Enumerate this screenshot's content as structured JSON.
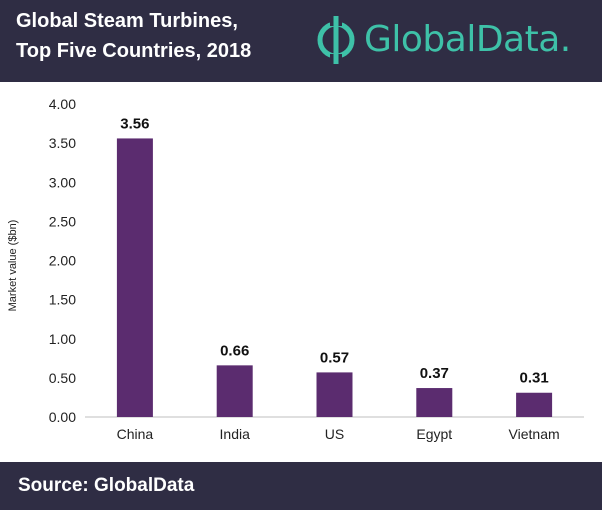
{
  "header": {
    "title_line1": "Global Steam Turbines,",
    "title_line2": "Top Five Countries, 2018",
    "logo_text": "GlobalData."
  },
  "footer": {
    "source": "Source: GlobalData"
  },
  "colors": {
    "bar": "#5b2c6f",
    "header_bg": "#2f2d44",
    "brand": "#3ec1a8"
  },
  "chart_data": {
    "type": "bar",
    "title": "Global Steam Turbines, Top Five Countries, 2018",
    "categories": [
      "China",
      "India",
      "US",
      "Egypt",
      "Vietnam"
    ],
    "values": [
      3.56,
      0.66,
      0.57,
      0.37,
      0.31
    ],
    "data_labels": [
      "3.56",
      "0.66",
      "0.57",
      "0.37",
      "0.31"
    ],
    "ylabel": "Market value ($bn)",
    "xlabel": "",
    "ylim": [
      0,
      4
    ],
    "yticks": [
      "0.00",
      "0.50",
      "1.00",
      "1.50",
      "2.00",
      "2.50",
      "3.00",
      "3.50",
      "4.00"
    ],
    "grid": false
  }
}
